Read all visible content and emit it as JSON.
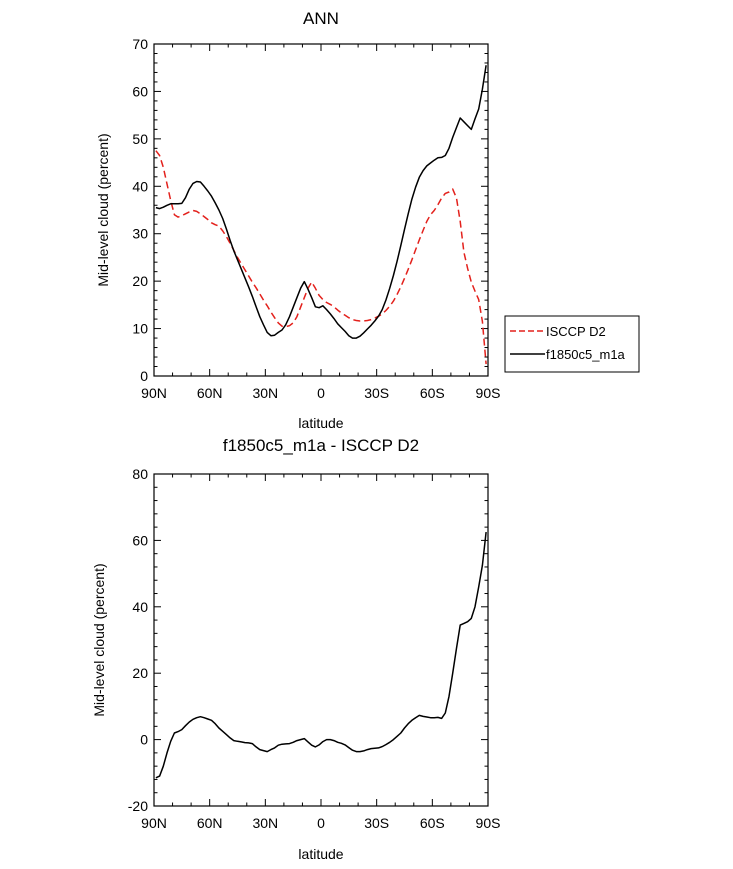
{
  "chart_data": [
    {
      "type": "line",
      "title": "ANN",
      "xlabel": "latitude",
      "ylabel": "Mid-level cloud (percent)",
      "xlim": [
        90,
        -90
      ],
      "ylim": [
        0,
        70
      ],
      "x_ticks": [
        90,
        60,
        30,
        0,
        -30,
        -60,
        -90
      ],
      "x_tick_labels": [
        "90N",
        "60N",
        "30N",
        "0",
        "30S",
        "60S",
        "90S"
      ],
      "y_ticks": [
        0,
        10,
        20,
        30,
        40,
        50,
        60,
        70
      ],
      "y_tick_labels": [
        "0",
        "10",
        "20",
        "30",
        "40",
        "50",
        "60",
        "70"
      ],
      "legend_position": "right",
      "series": [
        {
          "name": "ISCCP D2",
          "color": "#e3211c",
          "dash": "dashed",
          "x": [
            89,
            87,
            85,
            83,
            81,
            79,
            77,
            75,
            73,
            71,
            69,
            67,
            65,
            63,
            61,
            59,
            57,
            55,
            53,
            51,
            49,
            47,
            45,
            43,
            41,
            39,
            37,
            35,
            33,
            31,
            29,
            27,
            25,
            23,
            21,
            19,
            17,
            15,
            13,
            11,
            9,
            7,
            5,
            3,
            1,
            -1,
            -3,
            -5,
            -7,
            -9,
            -11,
            -13,
            -15,
            -17,
            -19,
            -21,
            -23,
            -25,
            -27,
            -29,
            -31,
            -33,
            -35,
            -37,
            -39,
            -41,
            -43,
            -45,
            -47,
            -49,
            -51,
            -53,
            -55,
            -57,
            -59,
            -61,
            -63,
            -65,
            -67,
            -69,
            -71,
            -73,
            -75,
            -77,
            -79,
            -81,
            -83,
            -85,
            -87,
            -89
          ],
          "y": [
            47.5,
            46.5,
            44,
            40.5,
            37,
            34,
            33.5,
            33.8,
            34.2,
            34.6,
            34.9,
            34.7,
            34.2,
            33.6,
            33,
            32.3,
            31.9,
            31.6,
            30.6,
            29.4,
            28,
            26.5,
            25,
            23.7,
            22.4,
            21.1,
            19.8,
            18.6,
            17.3,
            16,
            14.8,
            13.5,
            12.3,
            11.2,
            10.5,
            10.4,
            10.6,
            11.2,
            12.5,
            14.5,
            16.5,
            18.5,
            19.8,
            18.5,
            17,
            16.1,
            15.5,
            15.1,
            14.6,
            13.9,
            13.3,
            12.8,
            12.3,
            11.9,
            11.7,
            11.6,
            11.6,
            11.7,
            11.9,
            12.2,
            12.6,
            13.1,
            13.8,
            14.7,
            15.8,
            17.2,
            18.8,
            20.6,
            22.5,
            24.5,
            26.6,
            28.7,
            30.7,
            32.6,
            34,
            34.9,
            36.1,
            37.5,
            38.5,
            38.8,
            39.4,
            37.5,
            32.6,
            26.1,
            22.7,
            19.8,
            17.9,
            16.1,
            11.5,
            2.5
          ]
        },
        {
          "name": "f1850c5_m1a",
          "color": "#000000",
          "dash": "solid",
          "x": [
            89,
            87,
            85,
            83,
            81,
            79,
            77,
            75,
            73,
            71,
            69,
            67,
            65,
            63,
            61,
            59,
            57,
            55,
            53,
            51,
            49,
            47,
            45,
            43,
            41,
            39,
            37,
            35,
            33,
            31,
            29,
            27,
            25,
            23,
            21,
            19,
            17,
            15,
            13,
            11,
            9,
            7,
            5,
            3,
            1,
            -1,
            -3,
            -5,
            -7,
            -9,
            -11,
            -13,
            -15,
            -17,
            -19,
            -21,
            -23,
            -25,
            -27,
            -29,
            -31,
            -33,
            -35,
            -37,
            -39,
            -41,
            -43,
            -45,
            -47,
            -49,
            -51,
            -53,
            -55,
            -57,
            -59,
            -61,
            -63,
            -65,
            -67,
            -69,
            -71,
            -73,
            -75,
            -77,
            -79,
            -81,
            -83,
            -85,
            -87,
            -89
          ],
          "y": [
            35.5,
            35.3,
            35.6,
            36,
            36.3,
            36.3,
            36.3,
            36.4,
            37.6,
            39.4,
            40.6,
            41,
            40.9,
            40,
            39,
            37.9,
            36.5,
            35,
            33.2,
            31,
            28.6,
            26.4,
            24.5,
            22.6,
            20.7,
            18.8,
            16.8,
            14.6,
            12.5,
            10.8,
            9.2,
            8.5,
            8.6,
            9.2,
            9.7,
            10.8,
            12.5,
            14.5,
            16.5,
            18.5,
            19.9,
            18.3,
            16.5,
            14.6,
            14.4,
            14.8,
            14,
            13.1,
            12.1,
            11,
            10.2,
            9.4,
            8.5,
            8,
            8,
            8.4,
            9.1,
            9.9,
            10.7,
            11.6,
            12.6,
            14,
            16,
            18.5,
            21.2,
            24.2,
            27.5,
            30.9,
            34.2,
            37.3,
            39.8,
            41.9,
            43.3,
            44.3,
            44.9,
            45.5,
            46,
            46.1,
            46.5,
            48,
            50.3,
            52.4,
            54.4,
            53.6,
            52.8,
            52,
            54.2,
            56.3,
            60.5,
            65.5
          ]
        }
      ]
    },
    {
      "type": "line",
      "title": "f1850c5_m1a - ISCCP D2",
      "xlabel": "latitude",
      "ylabel": "Mid-level cloud (percent)",
      "xlim": [
        90,
        -90
      ],
      "ylim": [
        -20,
        80
      ],
      "x_ticks": [
        90,
        60,
        30,
        0,
        -30,
        -60,
        -90
      ],
      "x_tick_labels": [
        "90N",
        "60N",
        "30N",
        "0",
        "30S",
        "60S",
        "90S"
      ],
      "y_ticks": [
        -20,
        0,
        20,
        40,
        60,
        80
      ],
      "y_tick_labels": [
        "-20",
        "0",
        "20",
        "40",
        "60",
        "80"
      ],
      "series": [
        {
          "name": "f1850c5_m1a - ISCCP D2",
          "color": "#000000",
          "dash": "solid",
          "x": [
            89,
            87,
            85,
            83,
            81,
            79,
            77,
            75,
            73,
            71,
            69,
            67,
            65,
            63,
            61,
            59,
            57,
            55,
            53,
            51,
            49,
            47,
            45,
            43,
            41,
            39,
            37,
            35,
            33,
            31,
            29,
            27,
            25,
            23,
            21,
            19,
            17,
            15,
            13,
            11,
            9,
            7,
            5,
            3,
            1,
            -1,
            -3,
            -5,
            -7,
            -9,
            -11,
            -13,
            -15,
            -17,
            -19,
            -21,
            -23,
            -25,
            -27,
            -29,
            -31,
            -33,
            -35,
            -37,
            -39,
            -41,
            -43,
            -45,
            -47,
            -49,
            -51,
            -53,
            -55,
            -57,
            -59,
            -61,
            -63,
            -65,
            -67,
            -69,
            -71,
            -73,
            -75,
            -77,
            -79,
            -81,
            -83,
            -85,
            -87,
            -89
          ],
          "y": [
            -11.5,
            -11,
            -8,
            -4,
            -0.5,
            2,
            2.4,
            3,
            4.2,
            5.3,
            6.1,
            6.6,
            6.9,
            6.6,
            6.2,
            5.8,
            4.8,
            3.5,
            2.5,
            1.5,
            0.5,
            -0.3,
            -0.5,
            -0.7,
            -0.9,
            -1,
            -1.2,
            -2.2,
            -3,
            -3.3,
            -3.6,
            -3,
            -2.5,
            -1.7,
            -1.4,
            -1.3,
            -1.2,
            -0.8,
            -0.3,
            0,
            0.3,
            -0.7,
            -1.7,
            -2.2,
            -1.6,
            -0.6,
            0,
            0,
            -0.3,
            -0.8,
            -1.1,
            -1.6,
            -2.4,
            -3.2,
            -3.6,
            -3.6,
            -3.4,
            -3,
            -2.7,
            -2.6,
            -2.5,
            -2.1,
            -1.5,
            -0.8,
            0,
            1,
            2,
            3.5,
            4.8,
            5.8,
            6.6,
            7.3,
            7,
            6.8,
            6.6,
            6.6,
            6.7,
            6.4,
            8,
            13,
            20,
            27.5,
            34.5,
            35,
            35.5,
            36.5,
            40,
            46,
            52.5,
            62.5
          ]
        }
      ]
    }
  ]
}
